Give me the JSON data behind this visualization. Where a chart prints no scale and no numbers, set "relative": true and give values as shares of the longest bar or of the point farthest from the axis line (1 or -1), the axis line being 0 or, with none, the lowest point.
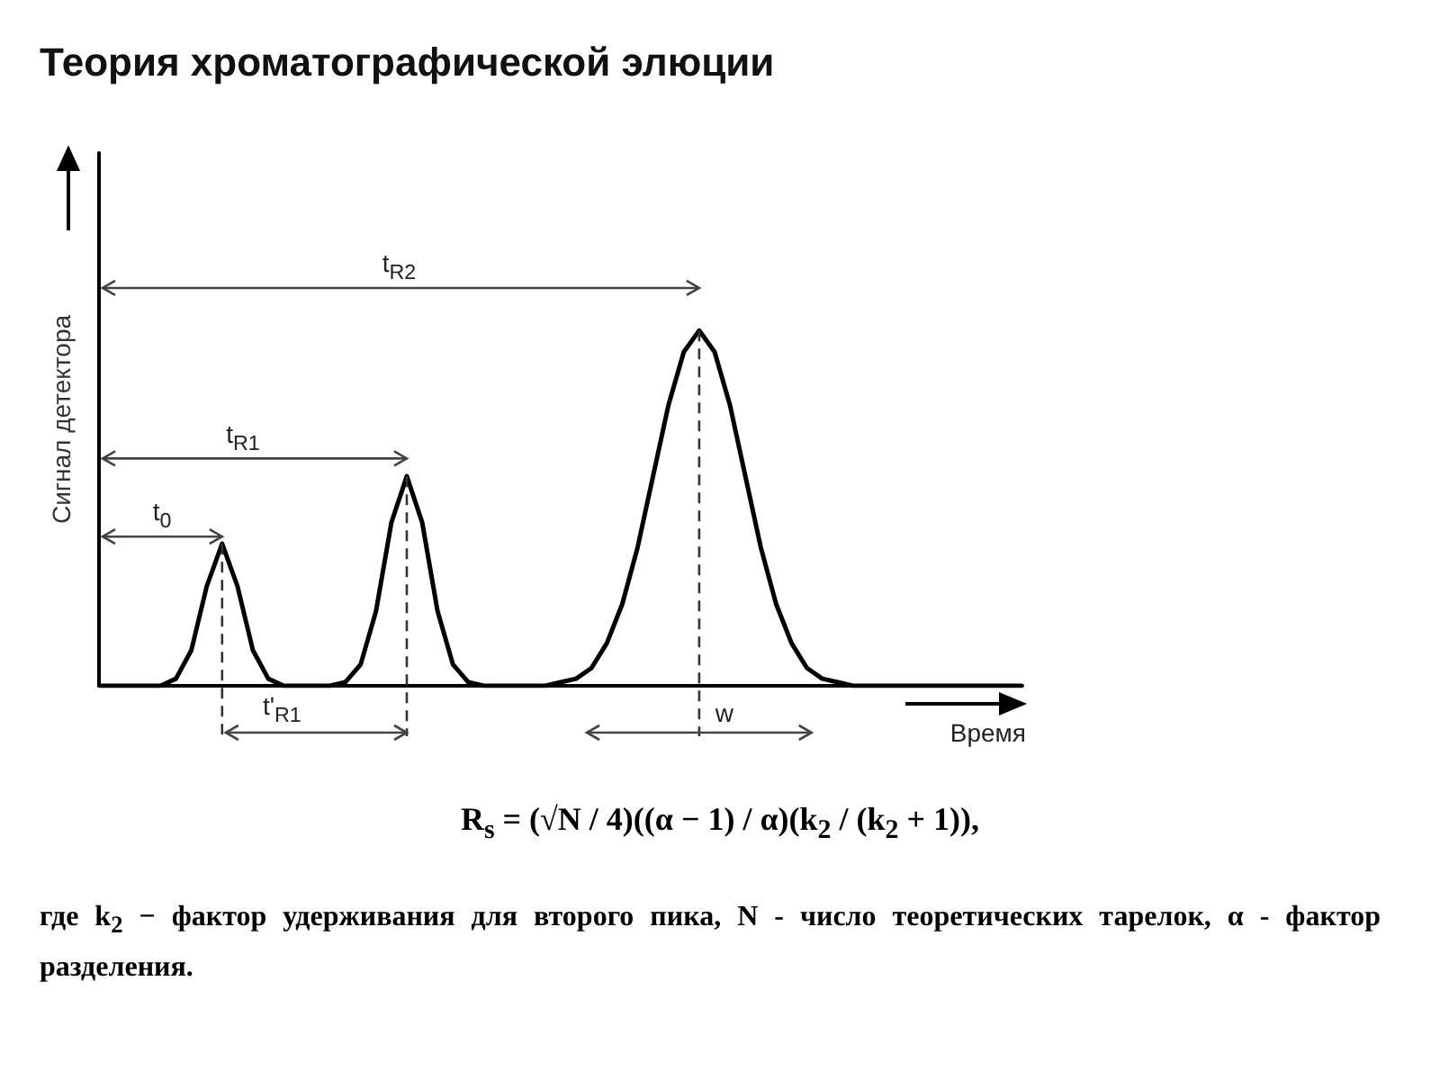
{
  "chart_data": {
    "type": "line",
    "title": "Теория хроматографической элюции",
    "xlabel": "Время",
    "ylabel": "Сигнал детектора",
    "relative": true,
    "color": "#000000",
    "marker": "none",
    "grid": false,
    "categories": [
      null,
      null,
      null,
      null,
      null,
      null,
      null,
      null,
      null,
      null,
      null,
      null,
      null,
      null,
      null,
      null,
      null,
      null,
      null,
      null,
      null,
      null,
      null,
      null,
      null,
      null,
      null,
      null,
      null,
      null,
      null,
      null,
      null,
      null,
      null,
      null,
      null,
      null,
      null,
      null,
      null,
      null,
      null,
      null,
      null,
      null,
      null,
      null,
      null,
      null,
      null,
      null,
      null,
      null,
      null,
      null,
      null,
      null,
      null,
      null,
      null
    ],
    "values": [
      0,
      0,
      0,
      0,
      0,
      0.02,
      0.1,
      0.28,
      0.4,
      0.28,
      0.1,
      0.02,
      0,
      0,
      0,
      0,
      0.01,
      0.06,
      0.21,
      0.46,
      0.59,
      0.46,
      0.21,
      0.06,
      0.01,
      0,
      0,
      0,
      0,
      0,
      0.01,
      0.02,
      0.05,
      0.12,
      0.23,
      0.39,
      0.59,
      0.79,
      0.94,
      1,
      0.94,
      0.79,
      0.59,
      0.39,
      0.23,
      0.12,
      0.05,
      0.02,
      0.01,
      0,
      0,
      0,
      0,
      0,
      0,
      0,
      0,
      0,
      0,
      0,
      0
    ],
    "annotations": [
      "t$_{R2}$",
      "t$_{R1}$",
      "t$_{0}$",
      "t'$_{R1}$",
      "w",
      "R$_{s}$ = (√N / 4)((α − 1) / α)(k$_{2}$ / (k$_{2}$ + 1)),",
      "где k$_{2}$ − фактор удерживания для второго пика, N - число теоретических тарелок, α - фактор разделения."
    ]
  }
}
